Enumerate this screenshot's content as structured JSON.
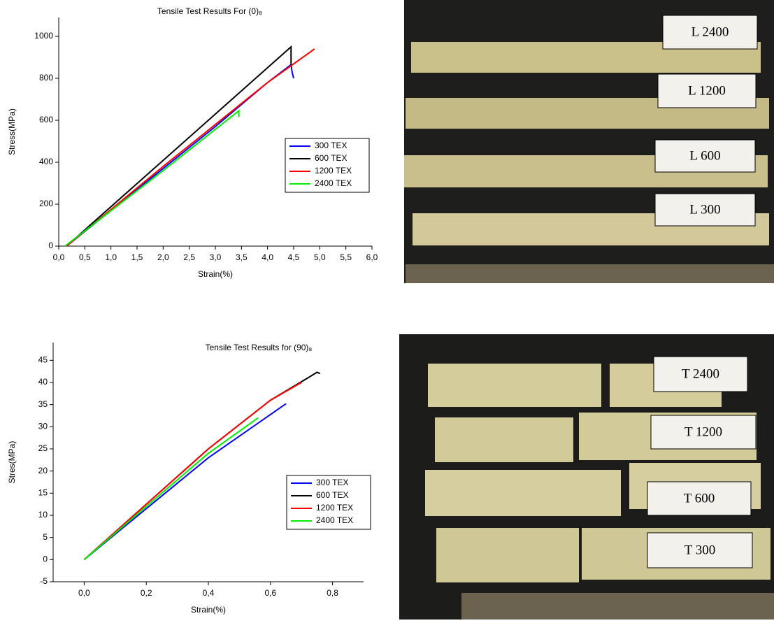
{
  "chart_data": [
    {
      "type": "line",
      "title": "Tensile Test Results For (0)₈",
      "x_label": "Strain(%)",
      "y_label": "Stress(MPa)",
      "xlim": [
        0,
        6
      ],
      "ylim": [
        0,
        1090
      ],
      "xticks": [
        {
          "value": 0,
          "label": "0,0"
        },
        {
          "value": 0.5,
          "label": "0,5"
        },
        {
          "value": 1,
          "label": "1,0"
        },
        {
          "value": 1.5,
          "label": "1,5"
        },
        {
          "value": 2,
          "label": "2,0"
        },
        {
          "value": 2.5,
          "label": "2,5"
        },
        {
          "value": 3,
          "label": "3,0"
        },
        {
          "value": 3.5,
          "label": "3,5"
        },
        {
          "value": 4,
          "label": "4,0"
        },
        {
          "value": 4.5,
          "label": "4,5"
        },
        {
          "value": 5,
          "label": "5,0"
        },
        {
          "value": 5.5,
          "label": "5,5"
        },
        {
          "value": 6,
          "label": "6,0"
        }
      ],
      "yticks": [
        0,
        200,
        400,
        600,
        800,
        1000
      ],
      "series": [
        {
          "name": "300 TEX",
          "color": "#0000ff",
          "x": [
            0.15,
            0.2,
            1,
            2,
            3,
            4,
            4.45,
            4.47,
            4.5
          ],
          "values": [
            0,
            10,
            170,
            370,
            570,
            780,
            865,
            830,
            800
          ]
        },
        {
          "name": "600 TEX",
          "color": "#000000",
          "x": [
            0.15,
            4.45,
            4.45
          ],
          "values": [
            0,
            950,
            865
          ]
        },
        {
          "name": "1200 TEX",
          "color": "#ff0000",
          "x": [
            0.15,
            2,
            4,
            4.9
          ],
          "values": [
            0,
            380,
            780,
            940
          ]
        },
        {
          "name": "2400 TEX",
          "color": "#00ee00",
          "x": [
            0.12,
            2,
            3.45,
            3.45
          ],
          "values": [
            0,
            360,
            645,
            615
          ]
        }
      ]
    },
    {
      "type": "line",
      "title": "Tensile Test Results for (90)₈",
      "x_label": "Strain(%)",
      "y_label": "Stres(MPa)",
      "xlim": [
        -0.1,
        0.9
      ],
      "ylim": [
        -5,
        49
      ],
      "xticks": [
        {
          "value": 0,
          "label": "0,0"
        },
        {
          "value": 0.2,
          "label": "0,2"
        },
        {
          "value": 0.4,
          "label": "0,4"
        },
        {
          "value": 0.6,
          "label": "0,6"
        },
        {
          "value": 0.8,
          "label": "0,8"
        }
      ],
      "yticks": [
        -5,
        0,
        5,
        10,
        15,
        20,
        25,
        30,
        35,
        40,
        45
      ],
      "series": [
        {
          "name": "300 TEX",
          "color": "#0000ff",
          "x": [
            0,
            0.2,
            0.4,
            0.65
          ],
          "values": [
            0,
            11.5,
            23,
            35.2
          ]
        },
        {
          "name": "600 TEX",
          "color": "#000000",
          "x": [
            0,
            0.2,
            0.4,
            0.6,
            0.72,
            0.75,
            0.76
          ],
          "values": [
            0,
            12.5,
            25,
            36,
            41,
            42.3,
            42
          ]
        },
        {
          "name": "1200 TEX",
          "color": "#ff0000",
          "x": [
            0,
            0.2,
            0.4,
            0.6,
            0.7
          ],
          "values": [
            0,
            12.5,
            25,
            36,
            40
          ]
        },
        {
          "name": "2400 TEX",
          "color": "#00ee00",
          "x": [
            0,
            0.2,
            0.4,
            0.56
          ],
          "values": [
            0,
            12,
            24,
            32
          ]
        }
      ]
    }
  ],
  "photos": [
    {
      "labels": [
        "L 2400",
        "L 1200",
        "L 600",
        "L 300"
      ]
    },
    {
      "labels": [
        "T 2400",
        "T 1200",
        "T 600",
        "T 300"
      ]
    }
  ]
}
